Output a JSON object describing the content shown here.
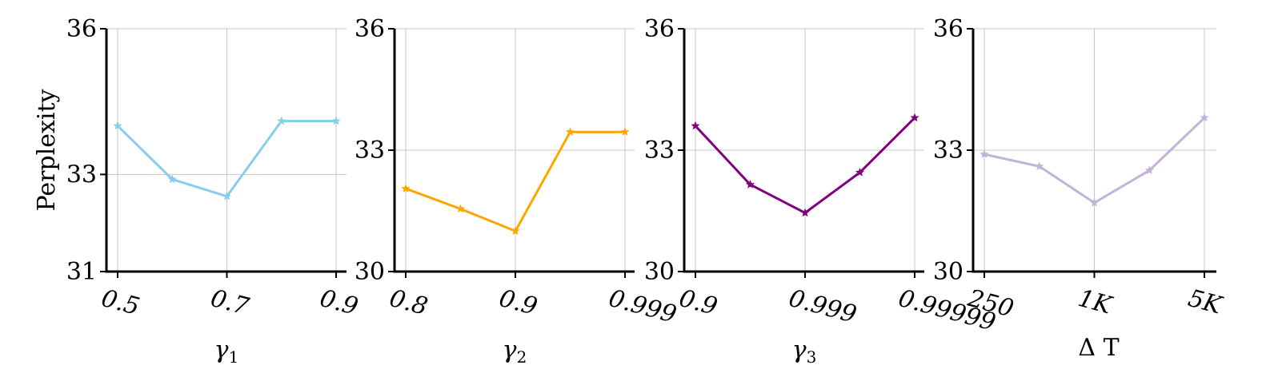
{
  "chart_data": [
    {
      "type": "line",
      "ylabel": "Perplexity",
      "xlabel": "γ1",
      "xlabel_main": "γ",
      "xlabel_sub": "1",
      "ylim": [
        31,
        36
      ],
      "yticks": [
        "31",
        "33",
        "36"
      ],
      "ytick_values": [
        31,
        33,
        36
      ],
      "xticks": [
        "0.5",
        "0.7",
        "0.9"
      ],
      "xtick_positions": [
        0,
        2,
        4
      ],
      "x": [
        0,
        1,
        2,
        3,
        4
      ],
      "grid": true,
      "color": "#87ceeb",
      "series": [
        {
          "values": [
            34.0,
            32.9,
            32.55,
            34.1,
            34.1
          ]
        }
      ]
    },
    {
      "type": "line",
      "xlabel": "γ2",
      "xlabel_main": "γ",
      "xlabel_sub": "2",
      "ylim": [
        30,
        36
      ],
      "yticks": [
        "30",
        "33",
        "36"
      ],
      "ytick_values": [
        30,
        33,
        36
      ],
      "xticks": [
        "0.8",
        "0.9",
        "0.999"
      ],
      "xtick_positions": [
        0,
        2,
        4
      ],
      "x": [
        0,
        1,
        2,
        3,
        4
      ],
      "grid": true,
      "color": "#ffa500",
      "series": [
        {
          "values": [
            32.05,
            31.55,
            31.0,
            33.45,
            33.45
          ]
        }
      ]
    },
    {
      "type": "line",
      "xlabel": "γ3",
      "xlabel_main": "γ",
      "xlabel_sub": "3",
      "ylim": [
        30,
        36
      ],
      "yticks": [
        "30",
        "33",
        "36"
      ],
      "ytick_values": [
        30,
        33,
        36
      ],
      "xticks": [
        "0.9",
        "0.999",
        "0.99999"
      ],
      "xtick_positions": [
        0,
        2,
        4
      ],
      "x": [
        0,
        1,
        2,
        3,
        4
      ],
      "grid": true,
      "color": "#800080",
      "series": [
        {
          "values": [
            33.6,
            32.15,
            31.45,
            32.45,
            33.8
          ]
        }
      ]
    },
    {
      "type": "line",
      "xlabel": "Δ T",
      "ylim": [
        30,
        36
      ],
      "yticks": [
        "30",
        "33",
        "36"
      ],
      "ytick_values": [
        30,
        33,
        36
      ],
      "xticks": [
        "250",
        "1K",
        "5K"
      ],
      "xtick_positions": [
        0,
        2,
        4
      ],
      "x": [
        0,
        1,
        2,
        3,
        4
      ],
      "grid": true,
      "color": "#c3b3d9",
      "series": [
        {
          "values": [
            32.9,
            32.6,
            31.7,
            32.5,
            33.8
          ]
        }
      ]
    }
  ]
}
